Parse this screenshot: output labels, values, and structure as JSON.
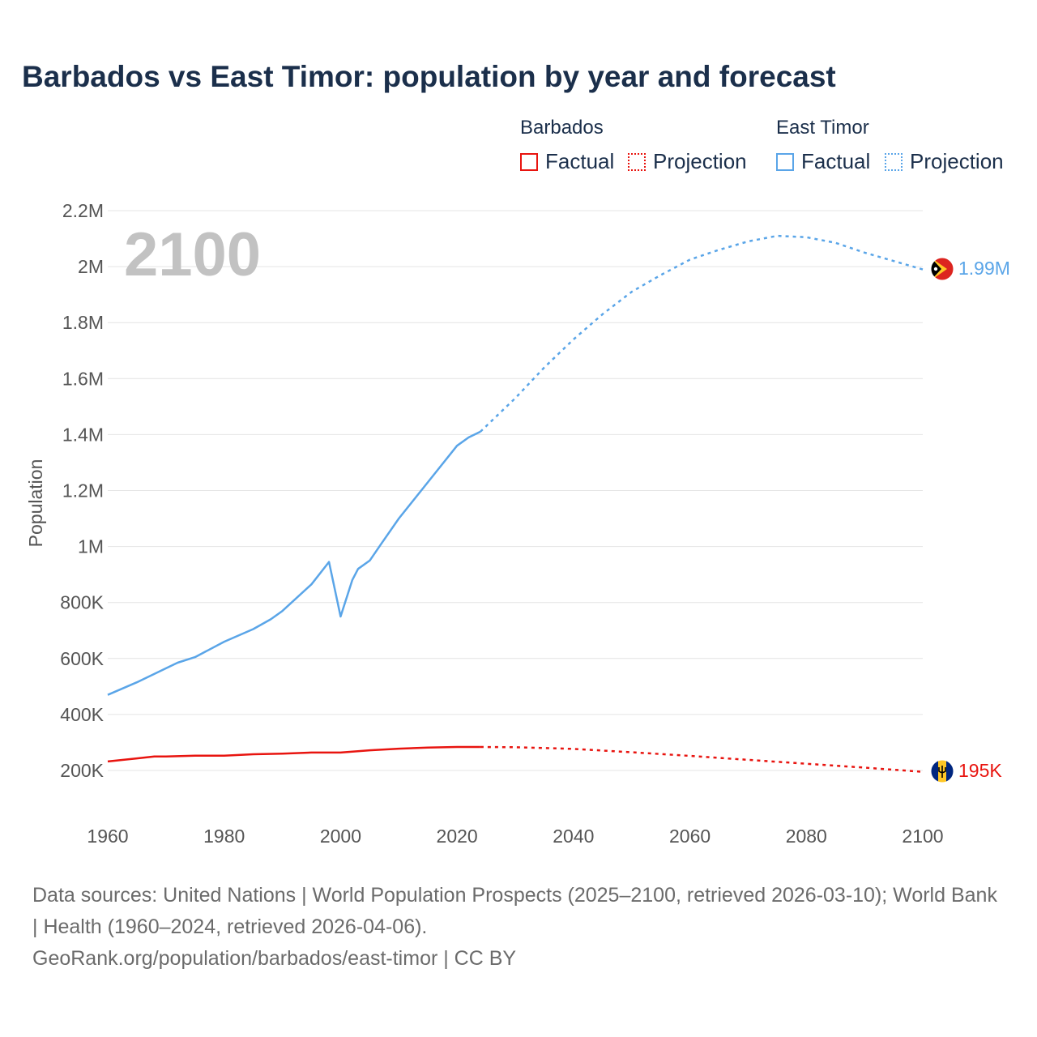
{
  "title": "Barbados vs East Timor: population by year and forecast",
  "legend": {
    "groups": [
      {
        "name": "Barbados",
        "factual_label": "Factual",
        "projection_label": "Projection",
        "color": "#e8140f"
      },
      {
        "name": "East Timor",
        "factual_label": "Factual",
        "projection_label": "Projection",
        "color": "#5aa5e8"
      }
    ]
  },
  "year_watermark": "2100",
  "footer": {
    "sources": "Data sources: United Nations | World Population Prospects (2025–2100, retrieved 2026-03-10); World Bank | Health (1960–2024, retrieved 2026-04-06).",
    "credit": "GeoRank.org/population/barbados/east-timor | CC BY"
  },
  "chart_data": {
    "type": "line",
    "title": "Barbados vs East Timor: population by year and forecast",
    "xlabel": "",
    "ylabel": "Population",
    "xlim": [
      1960,
      2100
    ],
    "ylim": [
      0,
      2200000
    ],
    "grid": true,
    "x_ticks": [
      1960,
      1980,
      2000,
      2020,
      2040,
      2060,
      2080,
      2100
    ],
    "x_tick_labels": [
      "1960",
      "1980",
      "2000",
      "2020",
      "2040",
      "2060",
      "2080",
      "2100"
    ],
    "y_ticks": [
      200000,
      400000,
      600000,
      800000,
      1000000,
      1200000,
      1400000,
      1600000,
      1800000,
      2000000,
      2200000
    ],
    "y_tick_labels": [
      "200K",
      "400K",
      "600K",
      "800K",
      "1M",
      "1.2M",
      "1.4M",
      "1.6M",
      "1.8M",
      "2M",
      "2.2M"
    ],
    "series": [
      {
        "name": "East Timor",
        "color": "#5aa5e8",
        "end_label": "1.99M",
        "factual": {
          "x": [
            1960,
            1965,
            1970,
            1972,
            1975,
            1980,
            1985,
            1988,
            1990,
            1995,
            1998,
            2000,
            2002,
            2003,
            2005,
            2007,
            2010,
            2015,
            2020,
            2022,
            2024
          ],
          "y": [
            470000,
            515000,
            565000,
            585000,
            605000,
            660000,
            705000,
            740000,
            770000,
            865000,
            945000,
            750000,
            880000,
            920000,
            950000,
            1010000,
            1100000,
            1230000,
            1360000,
            1390000,
            1410000
          ]
        },
        "projection": {
          "x": [
            2024,
            2030,
            2035,
            2040,
            2045,
            2050,
            2055,
            2060,
            2065,
            2070,
            2075,
            2080,
            2085,
            2090,
            2095,
            2100
          ],
          "y": [
            1410000,
            1530000,
            1640000,
            1740000,
            1830000,
            1910000,
            1970000,
            2025000,
            2060000,
            2090000,
            2110000,
            2105000,
            2085000,
            2050000,
            2020000,
            1990000
          ]
        }
      },
      {
        "name": "Barbados",
        "color": "#e8140f",
        "end_label": "195K",
        "factual": {
          "x": [
            1960,
            1965,
            1968,
            1970,
            1975,
            1980,
            1985,
            1990,
            1995,
            2000,
            2005,
            2010,
            2015,
            2020,
            2024
          ],
          "y": [
            232000,
            243000,
            250000,
            250000,
            253000,
            253000,
            258000,
            260000,
            264000,
            264000,
            272000,
            278000,
            282000,
            284000,
            284000
          ]
        },
        "projection": {
          "x": [
            2024,
            2030,
            2040,
            2050,
            2060,
            2070,
            2080,
            2090,
            2100
          ],
          "y": [
            284000,
            283000,
            277000,
            265000,
            252000,
            238000,
            224000,
            210000,
            195000
          ]
        }
      }
    ]
  }
}
